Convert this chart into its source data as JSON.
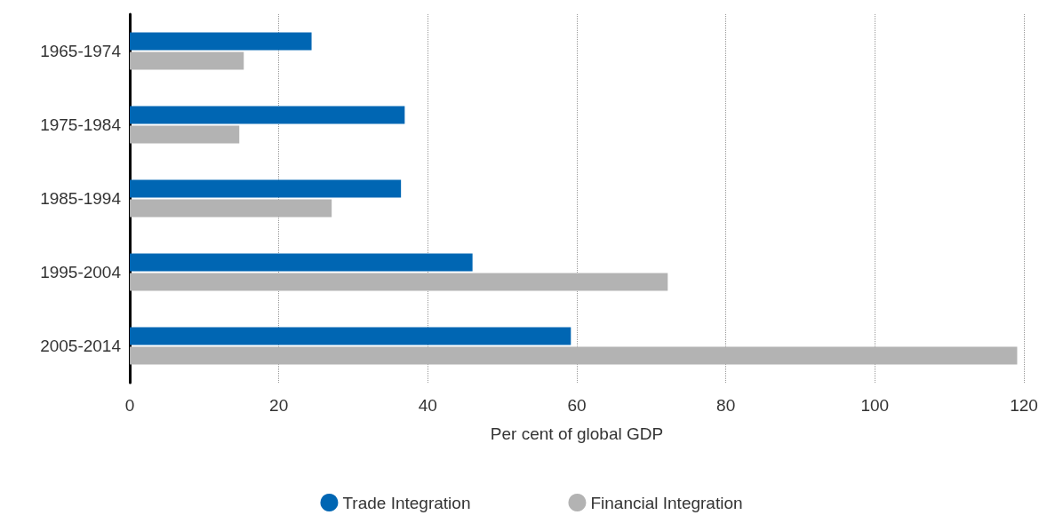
{
  "chart_data": {
    "type": "bar",
    "orientation": "horizontal",
    "xlabel": "Per cent of global GDP",
    "categories": [
      "1965-1974",
      "1975-1984",
      "1985-1994",
      "1995-2004",
      "2005-2014"
    ],
    "series": [
      {
        "name": "Trade Integration",
        "color": "#0066b3",
        "values": [
          24.4,
          36.9,
          36.4,
          46,
          59.2
        ]
      },
      {
        "name": "Financial Integration",
        "color": "#b3b3b3",
        "values": [
          15.3,
          14.7,
          27.1,
          72.2,
          119.1
        ]
      }
    ],
    "xlim": [
      0,
      120
    ],
    "xticks": [
      0,
      20,
      40,
      60,
      80,
      100,
      120
    ],
    "grid": "x",
    "legend": "bottom",
    "marker": "circle"
  }
}
